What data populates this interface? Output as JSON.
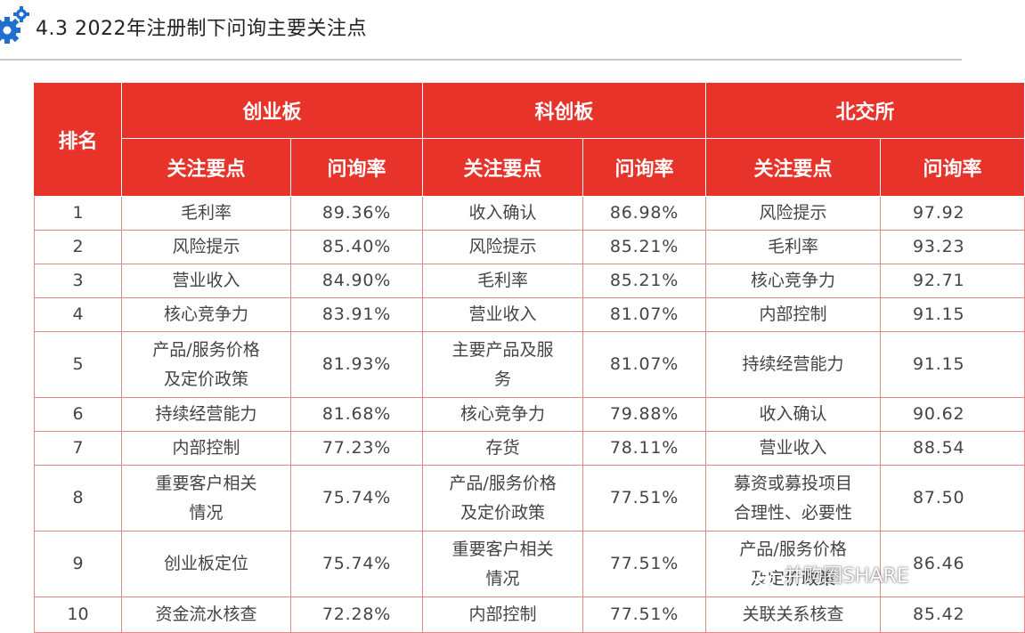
{
  "section": {
    "number": "4.3",
    "title": "2022年注册制下问询主要关注点"
  },
  "table": {
    "rank_header": "排名",
    "boards": [
      "创业板",
      "科创板",
      "北交所"
    ],
    "sub_headers": {
      "focus": "关注要点",
      "rate": "问询率"
    },
    "rows": [
      {
        "rank": "1",
        "cyb_focus": "毛利率",
        "cyb_rate": "89.36%",
        "kcb_focus": "收入确认",
        "kcb_rate": "86.98%",
        "bjs_focus": "风险提示",
        "bjs_rate": "97.92"
      },
      {
        "rank": "2",
        "cyb_focus": "风险提示",
        "cyb_rate": "85.40%",
        "kcb_focus": "风险提示",
        "kcb_rate": "85.21%",
        "bjs_focus": "毛利率",
        "bjs_rate": "93.23"
      },
      {
        "rank": "3",
        "cyb_focus": "营业收入",
        "cyb_rate": "84.90%",
        "kcb_focus": "毛利率",
        "kcb_rate": "85.21%",
        "bjs_focus": "核心竞争力",
        "bjs_rate": "92.71"
      },
      {
        "rank": "4",
        "cyb_focus": "核心竞争力",
        "cyb_rate": "83.91%",
        "kcb_focus": "营业收入",
        "kcb_rate": "81.07%",
        "bjs_focus": "内部控制",
        "bjs_rate": "91.15"
      },
      {
        "rank": "5",
        "cyb_focus": [
          "产品/服务价格",
          "及定价政策"
        ],
        "cyb_rate": "81.93%",
        "kcb_focus": [
          "主要产品及服",
          "务"
        ],
        "kcb_rate": "81.07%",
        "bjs_focus": "持续经营能力",
        "bjs_rate": "91.15"
      },
      {
        "rank": "6",
        "cyb_focus": "持续经营能力",
        "cyb_rate": "81.68%",
        "kcb_focus": "核心竞争力",
        "kcb_rate": "79.88%",
        "bjs_focus": "收入确认",
        "bjs_rate": "90.62"
      },
      {
        "rank": "7",
        "cyb_focus": "内部控制",
        "cyb_rate": "77.23%",
        "kcb_focus": "存货",
        "kcb_rate": "78.11%",
        "bjs_focus": "营业收入",
        "bjs_rate": "88.54"
      },
      {
        "rank": "8",
        "cyb_focus": [
          "重要客户相关",
          "情况"
        ],
        "cyb_rate": "75.74%",
        "kcb_focus": [
          "产品/服务价格",
          "及定价政策"
        ],
        "kcb_rate": "77.51%",
        "bjs_focus": [
          "募资或募投项目",
          "合理性、必要性"
        ],
        "bjs_rate": "87.50"
      },
      {
        "rank": "9",
        "cyb_focus": "创业板定位",
        "cyb_rate": "75.74%",
        "kcb_focus": [
          "重要客户相关",
          "情况"
        ],
        "kcb_rate": "77.51%",
        "bjs_focus": [
          "产品/服务价格",
          "及定价政策"
        ],
        "bjs_rate": "86.46"
      },
      {
        "rank": "10",
        "cyb_focus": "资金流水核查",
        "cyb_rate": "72.28%",
        "kcb_focus": "内部控制",
        "kcb_rate": "77.51%",
        "bjs_focus": "关联关系核查",
        "bjs_rate": "85.42"
      }
    ]
  },
  "watermark": {
    "text": "并购圈SHARE"
  },
  "colors": {
    "header_red": "#e8332a",
    "cell_border": "#e08a86",
    "gear_blue": "#1f6fd1"
  }
}
